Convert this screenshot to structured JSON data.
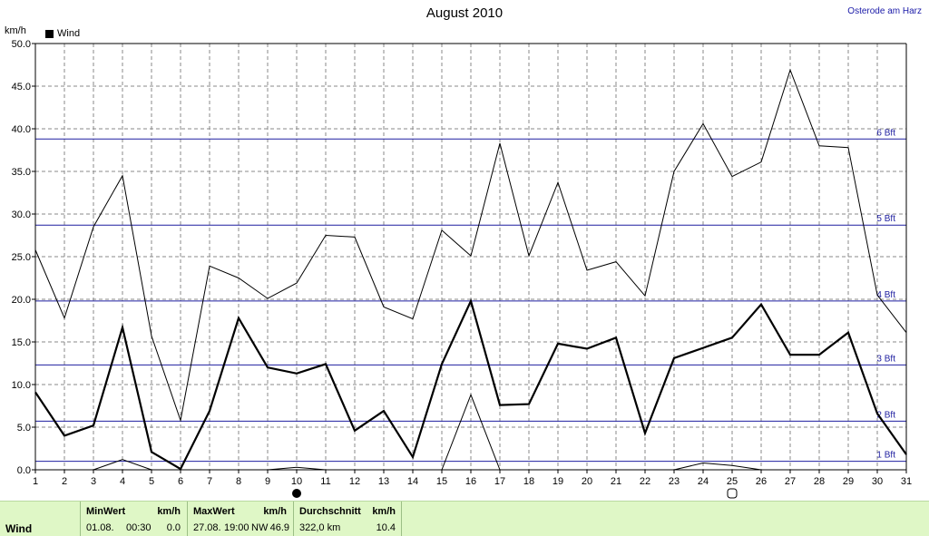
{
  "chart_data": {
    "type": "line",
    "title": "August 2010",
    "location": "Osterode am Harz",
    "ylabel": "km/h",
    "legend": "Wind",
    "ylim": [
      0,
      50
    ],
    "yticks": [
      "0.0",
      "5.0",
      "10.0",
      "15.0",
      "20.0",
      "25.0",
      "30.0",
      "35.0",
      "40.0",
      "45.0",
      "50.0"
    ],
    "x": [
      1,
      2,
      3,
      4,
      5,
      6,
      7,
      8,
      9,
      10,
      11,
      12,
      13,
      14,
      15,
      16,
      17,
      18,
      19,
      20,
      21,
      22,
      23,
      24,
      25,
      26,
      27,
      28,
      29,
      30,
      31
    ],
    "series": [
      {
        "values": [
          25.8,
          17.8,
          28.5,
          34.5,
          15.7,
          5.8,
          23.9,
          22.5,
          20.1,
          21.9,
          27.5,
          27.3,
          19.1,
          17.7,
          28.1,
          25.1,
          38.3,
          25.1,
          33.7,
          23.4,
          24.4,
          20.4,
          35.0,
          40.6,
          34.4,
          36.1,
          46.9,
          38.0,
          37.8,
          20.5,
          16.1
        ],
        "style": "thin"
      },
      {
        "values": [
          9.1,
          4.0,
          5.2,
          16.7,
          2.1,
          0.1,
          6.9,
          17.8,
          12.0,
          11.3,
          12.4,
          4.6,
          6.9,
          1.5,
          12.4,
          19.8,
          7.6,
          7.7,
          14.8,
          14.2,
          15.5,
          4.3,
          13.1,
          14.3,
          15.5,
          19.4,
          13.5,
          13.5,
          16.1,
          6.6,
          1.8
        ],
        "style": "bold"
      },
      {
        "values": [
          0,
          0,
          0,
          1.2,
          0,
          0,
          0,
          0,
          0,
          0.3,
          0,
          0,
          0,
          0,
          0,
          8.8,
          0,
          0,
          0,
          0,
          0,
          0,
          0,
          0.8,
          0.5,
          0,
          0,
          0,
          0,
          0,
          0
        ],
        "style": "thin"
      }
    ],
    "beaufort": [
      {
        "label": "1 Bft",
        "value": 1.0
      },
      {
        "label": "2 Bft",
        "value": 5.7
      },
      {
        "label": "3 Bft",
        "value": 12.3
      },
      {
        "label": "4 Bft",
        "value": 19.8
      },
      {
        "label": "5 Bft",
        "value": 28.7
      },
      {
        "label": "6 Bft",
        "value": 38.8
      }
    ],
    "moon_phases": [
      {
        "day": 10,
        "phase": "new"
      },
      {
        "day": 25,
        "phase": "full"
      }
    ],
    "grid": true
  },
  "footer": {
    "row_label": "Wind",
    "min": {
      "header": "MinWert",
      "unit": "km/h",
      "date": "01.08.",
      "time": "00:30",
      "value": "0.0"
    },
    "max": {
      "header": "MaxWert",
      "unit": "km/h",
      "date": "27.08.",
      "time": "19:00",
      "direction": "NW",
      "value": "46.9"
    },
    "avg": {
      "header": "Durchschnitt",
      "unit": "km/h",
      "distance": "322,0 km",
      "value": "10.4"
    }
  }
}
